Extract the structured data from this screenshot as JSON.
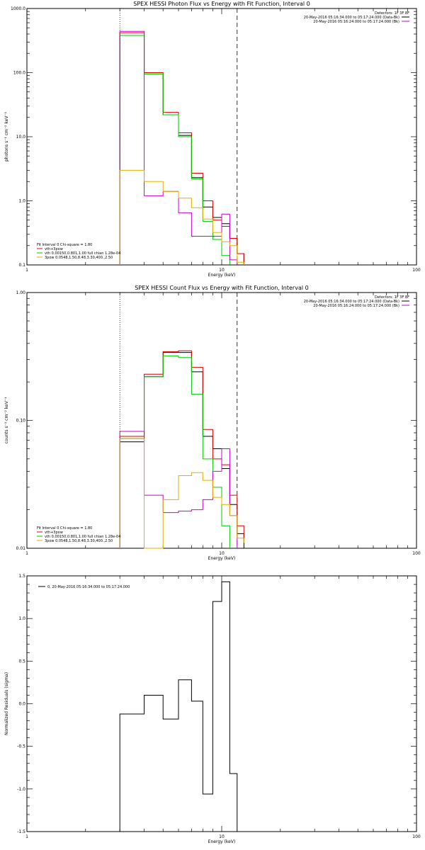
{
  "chart_data": [
    {
      "type": "line",
      "title": "SPEX HESSI Photon Flux vs Energy with Fit Function, Interval 0",
      "xlabel": "Energy (keV)",
      "ylabel": "photons s⁻¹ cm⁻² keV⁻¹",
      "xscale": "log",
      "yscale": "log",
      "xlim": [
        1,
        100
      ],
      "ylim": [
        0.1,
        1000
      ],
      "x_ticks": [
        "1",
        "10",
        "100"
      ],
      "y_ticks": [
        "0.1",
        "1.0",
        "10.0",
        "100.0",
        "1000.0"
      ],
      "vlines": [
        {
          "x": 3.0,
          "style": "dotted"
        },
        {
          "x": 12.0,
          "style": "dashed"
        }
      ],
      "legend_tr": {
        "header": "Detectors: 1F 3F 8F",
        "entries": [
          {
            "text": "20-May-2016 05:16:34.000 to 05:17:24.000 (Data-Bk)",
            "color": "#000000"
          },
          {
            "text": "20-May-2016 05:16:24.000 to 05:17:24.000 (Bk)",
            "color": "#cc00cc"
          }
        ]
      },
      "fit_info": {
        "header": "Fit Interval 0   Chi-square = 1.80",
        "lines": [
          {
            "text": "vth+3pow",
            "color": "#e00000"
          },
          {
            "text": "vth 0.00150,0.801,1.00  full chian 1.28e-04",
            "color": "#00cc00"
          },
          {
            "text": "3pow 0.0548,1.50,8.48,3.30,400.,2.50",
            "color": "#e0b000"
          }
        ]
      },
      "edges": [
        3.0,
        4.0,
        5.0,
        6.0,
        7.0,
        8.0,
        9.0,
        10.0,
        11.0,
        12.0,
        13.0
      ],
      "series": [
        {
          "color": "#000000",
          "values": [
            380,
            95,
            22,
            10.5,
            2.3,
            0.8,
            0.55,
            0.44,
            0.26,
            0.15
          ]
        },
        {
          "color": "#e00000",
          "values": [
            420,
            100,
            24,
            11.5,
            2.7,
            1.0,
            0.5,
            0.4,
            0.26,
            0.15
          ]
        },
        {
          "color": "#00cc00",
          "values": [
            380,
            95,
            22,
            10.0,
            2.2,
            0.48,
            0.25,
            0.14
          ]
        },
        {
          "color": "#cc00cc",
          "values": [
            440,
            1.2,
            1.4,
            0.65,
            0.28,
            0.28,
            0.28,
            0.62,
            0.12
          ]
        },
        {
          "color": "#e0b000",
          "values": [
            3.0,
            2.0,
            1.4,
            1.1,
            0.78,
            0.52,
            0.32,
            0.23,
            0.2,
            0.11
          ]
        }
      ]
    },
    {
      "type": "line",
      "title": "SPEX HESSI Count Flux vs Energy with Fit Function, Interval 0",
      "xlabel": "Energy (keV)",
      "ylabel": "counts s⁻¹ cm⁻² keV⁻¹",
      "xscale": "log",
      "yscale": "log",
      "xlim": [
        1,
        100
      ],
      "ylim": [
        0.01,
        1.0
      ],
      "x_ticks": [
        "1",
        "10",
        "100"
      ],
      "y_ticks": [
        "0.01",
        "0.10",
        "1.00"
      ],
      "vlines": [
        {
          "x": 3.0,
          "style": "dotted"
        },
        {
          "x": 12.0,
          "style": "dashed"
        }
      ],
      "legend_tr": {
        "header": "Detectors: 1F 3F 8F",
        "entries": [
          {
            "text": "20-May-2016 05:16:34.000 to 05:17:24.000 (Data-Bk)",
            "color": "#000000"
          },
          {
            "text": "20-May-2016 05:16:24.000 to 05:17:24.000 (Bk)",
            "color": "#cc00cc"
          }
        ]
      },
      "fit_info": {
        "header": "Fit Interval 0   Chi-square = 1.80",
        "lines": [
          {
            "text": "vth+3pow",
            "color": "#e00000"
          },
          {
            "text": "vth 0.00150,0.801,1.00  full chian 1.28e-04",
            "color": "#00cc00"
          },
          {
            "text": "3pow 0.0548,1.50,8.48,3.30,400.,2.50",
            "color": "#e0b000"
          }
        ]
      },
      "edges": [
        3.0,
        4.0,
        5.0,
        6.0,
        7.0,
        8.0,
        9.0,
        10.0,
        11.0,
        12.0,
        13.0
      ],
      "series": [
        {
          "color": "#000000",
          "values": [
            0.068,
            0.22,
            0.34,
            0.34,
            0.24,
            0.075,
            0.06,
            0.042,
            0.022,
            0.013
          ]
        },
        {
          "color": "#e00000",
          "values": [
            0.075,
            0.23,
            0.345,
            0.35,
            0.26,
            0.085,
            0.05,
            0.045,
            0.026,
            0.015,
            0.012
          ]
        },
        {
          "color": "#00cc00",
          "values": [
            0.072,
            0.22,
            0.32,
            0.31,
            0.16,
            0.05,
            0.03,
            0.015
          ]
        },
        {
          "color": "#cc00cc",
          "values": [
            0.082,
            0.026,
            0.019,
            0.0195,
            0.02,
            0.024,
            0.04,
            0.06,
            0.018
          ]
        },
        {
          "color": "#e0b000",
          "values": [
            0.072,
            0.0095,
            0.024,
            0.037,
            0.039,
            0.034,
            0.025,
            0.022,
            0.018,
            0.012,
            0.011
          ]
        }
      ]
    },
    {
      "type": "line",
      "title": "",
      "xlabel": "Energy (keV)",
      "ylabel": "Normalized Residuals (sigma)",
      "xscale": "log",
      "yscale": "linear",
      "xlim": [
        1,
        100
      ],
      "ylim": [
        -1.5,
        1.5
      ],
      "x_ticks": [
        "1",
        "10",
        "100"
      ],
      "y_ticks": [
        "-1.5",
        "-1.0",
        "-0.5",
        "0.0",
        "0.5",
        "1.0",
        "1.5"
      ],
      "vlines": [],
      "legend_tl": "0, 20-May-2016 05:16:34.000 to 05:17:24.000",
      "edges": [
        3.0,
        4.0,
        5.0,
        6.0,
        7.0,
        8.0,
        9.0,
        10.0,
        11.0,
        12.0
      ],
      "series": [
        {
          "color": "#000000",
          "values": [
            -0.12,
            0.1,
            -0.18,
            0.28,
            0.03,
            -1.06,
            1.2,
            1.43,
            -0.82
          ]
        }
      ]
    }
  ]
}
